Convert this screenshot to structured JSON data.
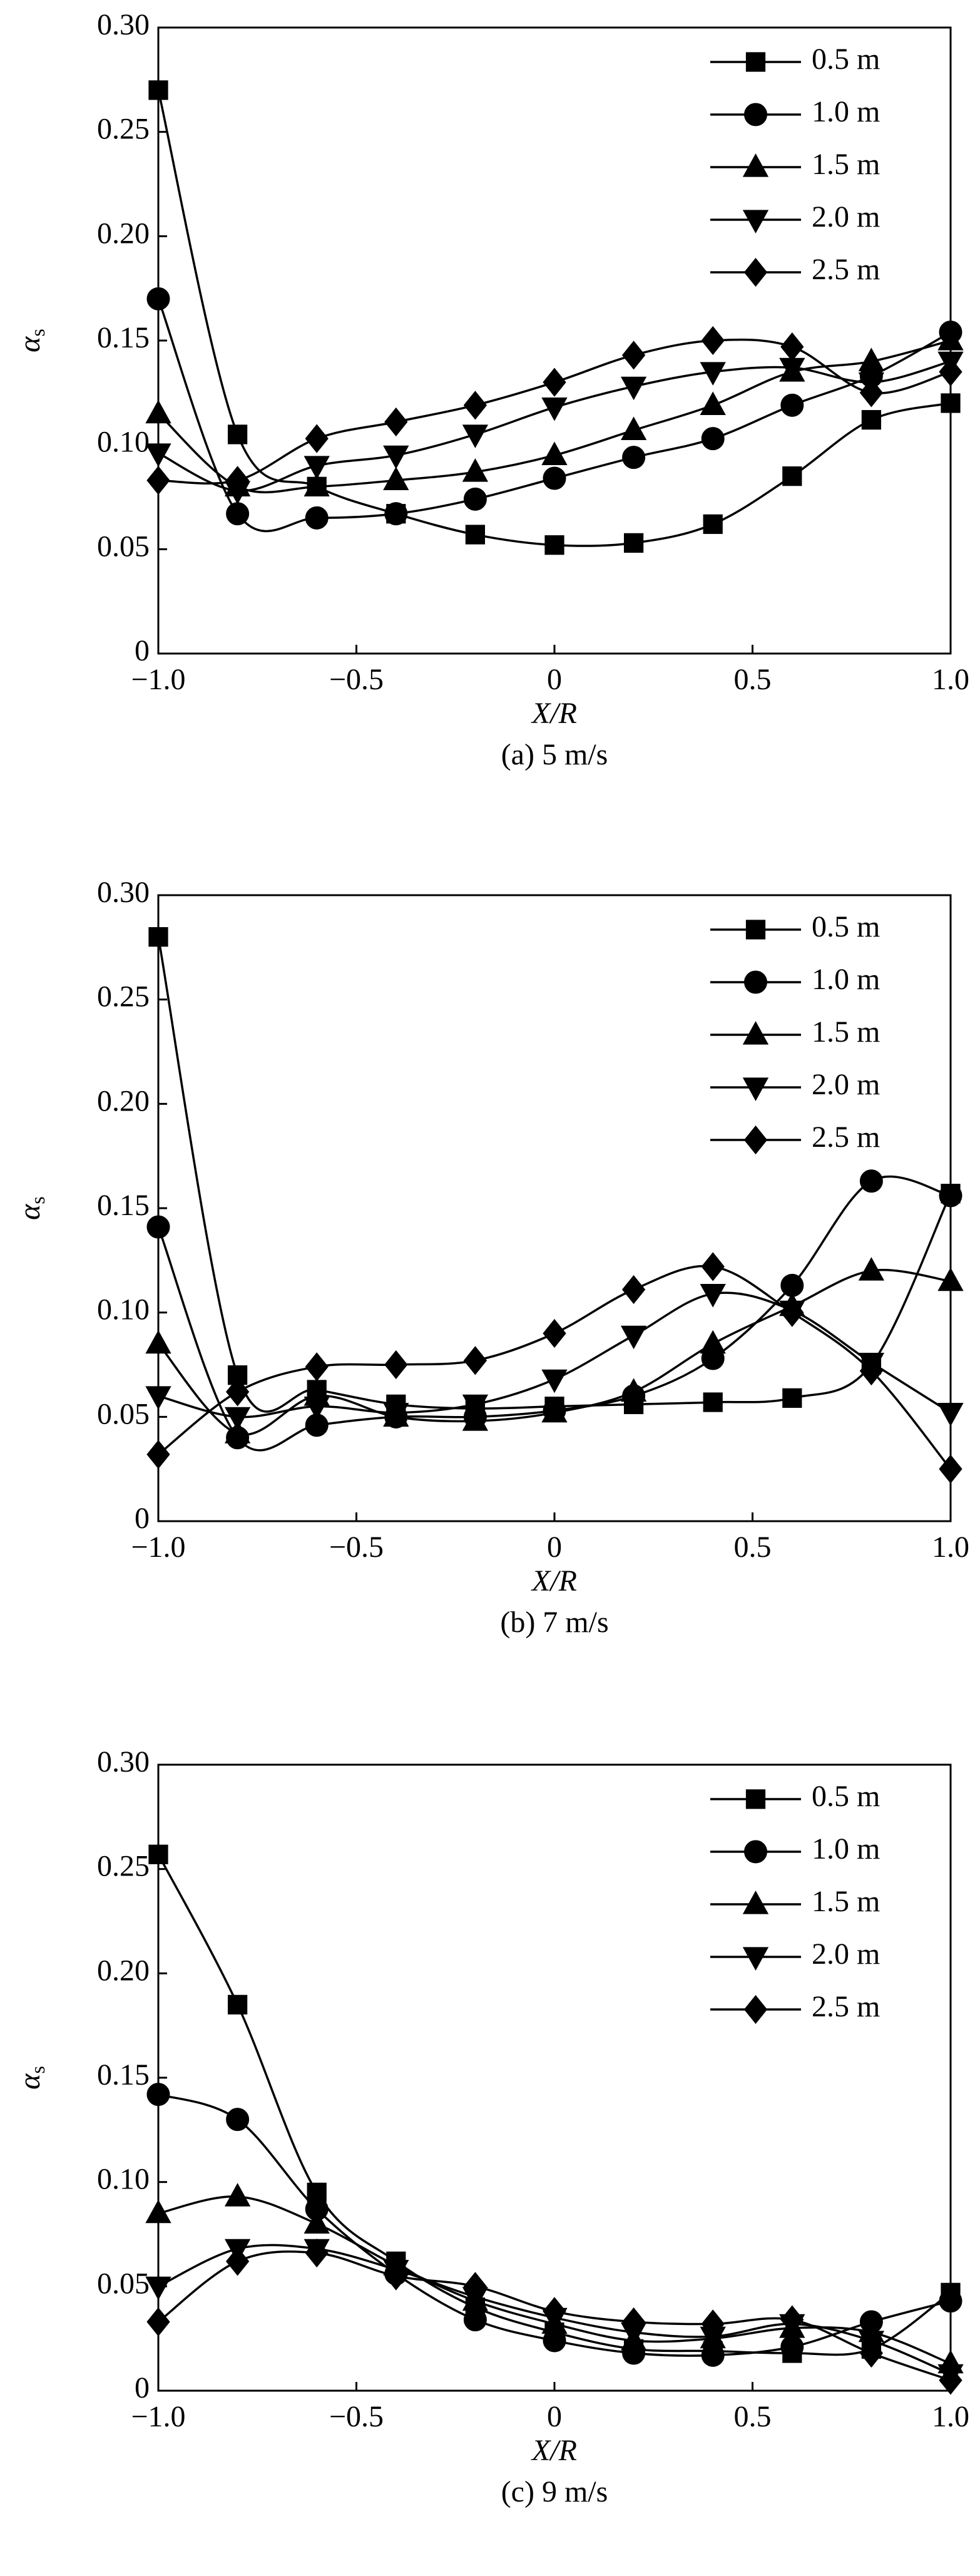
{
  "chart_data": [
    {
      "type": "line",
      "ylabel": "α",
      "ylabel_subscript": "s",
      "xlabel": "X/R",
      "caption": "(a) 5 m/s",
      "legend": "upper right",
      "x": [
        -1.0,
        -0.8,
        -0.6,
        -0.4,
        -0.2,
        0,
        0.2,
        0.4,
        0.6,
        0.8,
        1.0
      ],
      "xlim": [
        -1.0,
        1.0
      ],
      "xticks": [
        {
          "value": -1.0,
          "label": "−1.0"
        },
        {
          "value": -0.5,
          "label": "−0.5"
        },
        0,
        0.5,
        {
          "value": 1.0,
          "label": "1.0"
        }
      ],
      "ylim": [
        0,
        0.3
      ],
      "yticks": [
        0,
        0.05,
        {
          "value": 0.1,
          "label": "0.10"
        },
        0.15,
        {
          "value": 0.2,
          "label": "0.20"
        },
        0.25,
        {
          "value": 0.3,
          "label": "0.30"
        }
      ],
      "series": [
        {
          "name": "0.5 m",
          "color": "#000000",
          "marker": "square",
          "values": [
            0.27,
            0.105,
            0.08,
            0.067,
            0.057,
            0.052,
            0.053,
            0.062,
            0.085,
            0.112,
            0.12
          ]
        },
        {
          "name": "1.0 m",
          "color": "#000000",
          "marker": "circle",
          "values": [
            0.17,
            0.067,
            0.065,
            0.067,
            0.074,
            0.084,
            0.094,
            0.103,
            0.119,
            0.133,
            0.154
          ]
        },
        {
          "name": "1.5 m",
          "color": "#000000",
          "marker": "triangle-up",
          "values": [
            0.115,
            0.08,
            0.08,
            0.083,
            0.087,
            0.095,
            0.107,
            0.119,
            0.135,
            0.14,
            0.15
          ]
        },
        {
          "name": "2.0 m",
          "color": "#000000",
          "marker": "triangle-down",
          "values": [
            0.096,
            0.078,
            0.09,
            0.095,
            0.105,
            0.118,
            0.128,
            0.135,
            0.137,
            0.13,
            0.14
          ]
        },
        {
          "name": "2.5 m",
          "color": "#000000",
          "marker": "diamond",
          "values": [
            0.083,
            0.083,
            0.103,
            0.111,
            0.119,
            0.13,
            0.143,
            0.15,
            0.147,
            0.125,
            0.135
          ]
        }
      ]
    },
    {
      "type": "line",
      "ylabel": "α",
      "ylabel_subscript": "s",
      "xlabel": "X/R",
      "caption": "(b) 7 m/s",
      "legend": "upper right",
      "x": [
        -1.0,
        -0.8,
        -0.6,
        -0.4,
        -0.2,
        0,
        0.2,
        0.4,
        0.6,
        0.8,
        1.0
      ],
      "xlim": [
        -1.0,
        1.0
      ],
      "xticks": [
        {
          "value": -1.0,
          "label": "−1.0"
        },
        {
          "value": -0.5,
          "label": "−0.5"
        },
        0,
        0.5,
        {
          "value": 1.0,
          "label": "1.0"
        }
      ],
      "ylim": [
        0,
        0.3
      ],
      "yticks": [
        0,
        0.05,
        {
          "value": 0.1,
          "label": "0.10"
        },
        0.15,
        {
          "value": 0.2,
          "label": "0.20"
        },
        0.25,
        {
          "value": 0.3,
          "label": "0.30"
        }
      ],
      "series": [
        {
          "name": "0.5 m",
          "color": "#000000",
          "marker": "square",
          "values": [
            0.28,
            0.07,
            0.063,
            0.056,
            0.054,
            0.055,
            0.056,
            0.057,
            0.059,
            0.075,
            0.157
          ]
        },
        {
          "name": "1.0 m",
          "color": "#000000",
          "marker": "circle",
          "values": [
            0.141,
            0.04,
            0.046,
            0.05,
            0.05,
            0.053,
            0.06,
            0.078,
            0.113,
            0.163,
            0.156
          ]
        },
        {
          "name": "1.5 m",
          "color": "#000000",
          "marker": "triangle-up",
          "values": [
            0.085,
            0.042,
            0.06,
            0.05,
            0.048,
            0.052,
            0.062,
            0.085,
            0.103,
            0.12,
            0.115
          ]
        },
        {
          "name": "2.0 m",
          "color": "#000000",
          "marker": "triangle-down",
          "values": [
            0.06,
            0.05,
            0.055,
            0.052,
            0.056,
            0.068,
            0.089,
            0.109,
            0.101,
            0.076,
            0.052
          ]
        },
        {
          "name": "2.5 m",
          "color": "#000000",
          "marker": "diamond",
          "values": [
            0.032,
            0.062,
            0.074,
            0.075,
            0.077,
            0.09,
            0.111,
            0.122,
            0.1,
            0.072,
            0.025
          ]
        }
      ]
    },
    {
      "type": "line",
      "ylabel": "α",
      "ylabel_subscript": "s",
      "xlabel": "X/R",
      "caption": "(c) 9 m/s",
      "legend": "upper right",
      "x": [
        -1.0,
        -0.8,
        -0.6,
        -0.4,
        -0.2,
        0,
        0.2,
        0.4,
        0.6,
        0.8,
        1.0
      ],
      "xlim": [
        -1.0,
        1.0
      ],
      "xticks": [
        {
          "value": -1.0,
          "label": "−1.0"
        },
        {
          "value": -0.5,
          "label": "−0.5"
        },
        0,
        0.5,
        {
          "value": 1.0,
          "label": "1.0"
        }
      ],
      "ylim": [
        0,
        0.3
      ],
      "yticks": [
        0,
        0.05,
        {
          "value": 0.1,
          "label": "0.10"
        },
        0.15,
        {
          "value": 0.2,
          "label": "0.20"
        },
        0.25,
        {
          "value": 0.3,
          "label": "0.30"
        }
      ],
      "series": [
        {
          "name": "0.5 m",
          "color": "#000000",
          "marker": "square",
          "values": [
            0.257,
            0.185,
            0.095,
            0.062,
            0.04,
            0.028,
            0.02,
            0.019,
            0.018,
            0.02,
            0.047
          ]
        },
        {
          "name": "1.0 m",
          "color": "#000000",
          "marker": "circle",
          "values": [
            0.142,
            0.13,
            0.087,
            0.056,
            0.034,
            0.024,
            0.018,
            0.017,
            0.021,
            0.033,
            0.043
          ]
        },
        {
          "name": "1.5 m",
          "color": "#000000",
          "marker": "triangle-up",
          "values": [
            0.085,
            0.093,
            0.08,
            0.06,
            0.043,
            0.032,
            0.024,
            0.025,
            0.03,
            0.028,
            0.013
          ]
        },
        {
          "name": "2.0 m",
          "color": "#000000",
          "marker": "triangle-down",
          "values": [
            0.05,
            0.068,
            0.068,
            0.058,
            0.045,
            0.035,
            0.028,
            0.026,
            0.032,
            0.024,
            0.008
          ]
        },
        {
          "name": "2.5 m",
          "color": "#000000",
          "marker": "diamond",
          "values": [
            0.033,
            0.062,
            0.066,
            0.055,
            0.05,
            0.038,
            0.033,
            0.032,
            0.034,
            0.018,
            0.005
          ]
        }
      ]
    }
  ]
}
